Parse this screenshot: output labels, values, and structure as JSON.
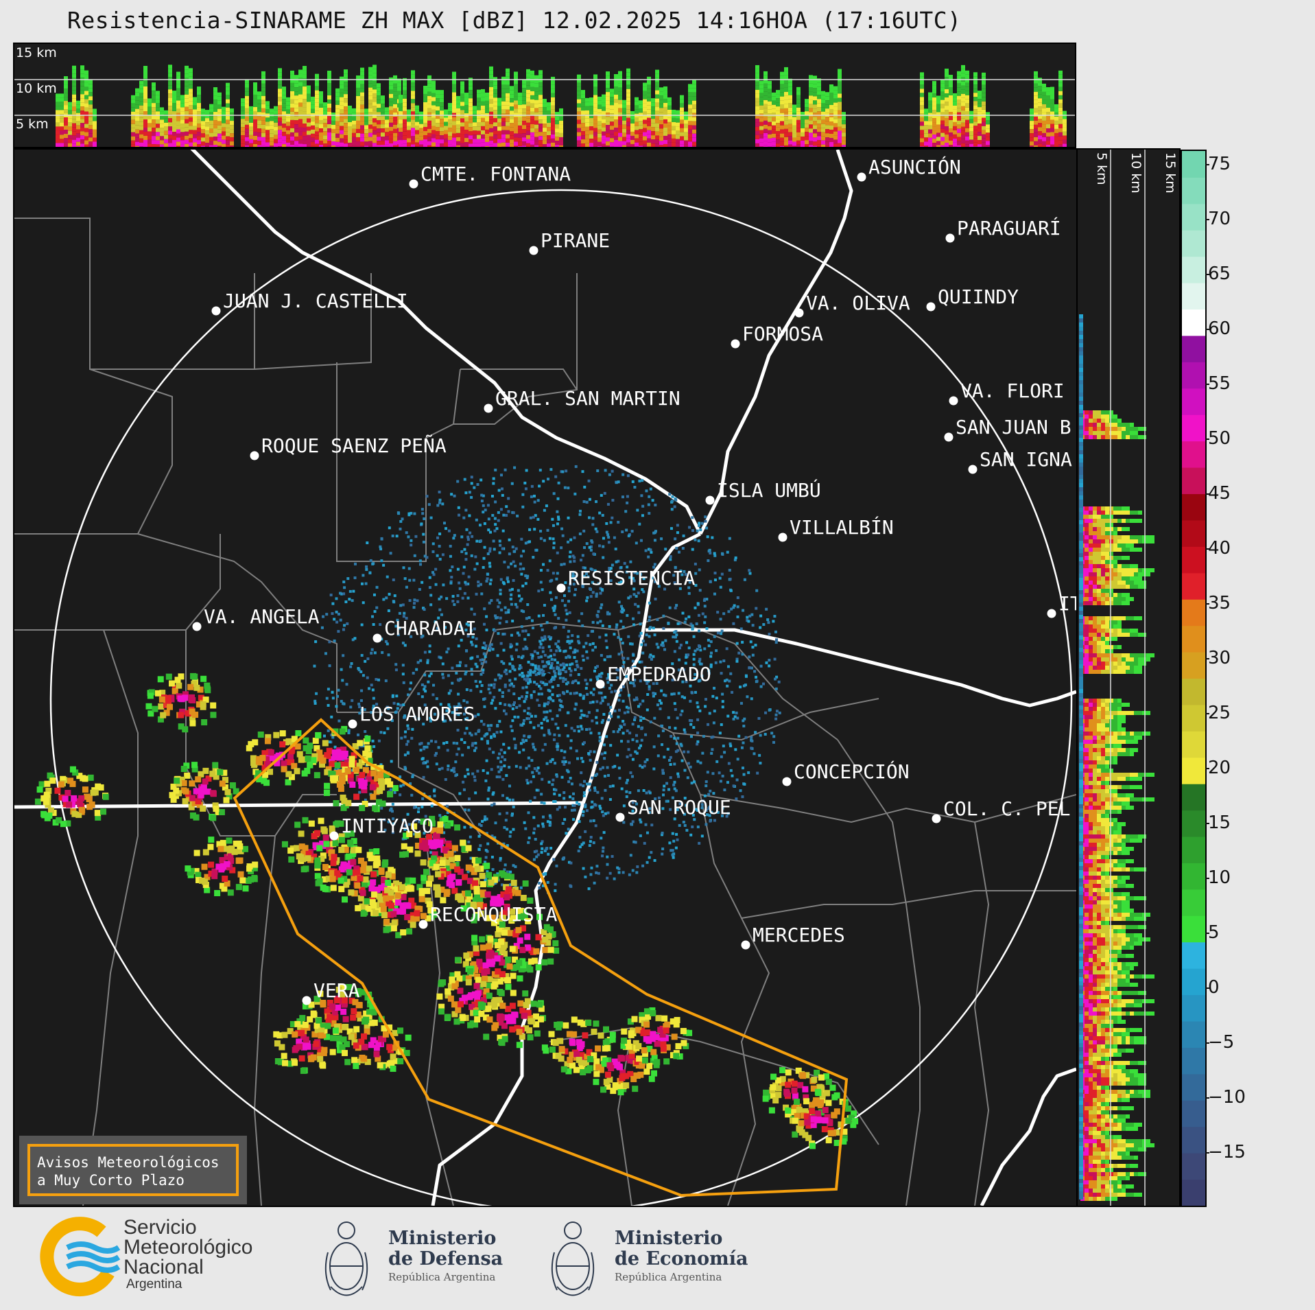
{
  "title": "Resistencia-SINARAME ZH MAX [dBZ] 12.02.2025 14:16HOA (17:16UTC)",
  "top_panel": {
    "altitude_labels": [
      "15 km",
      "10 km",
      "5 km"
    ]
  },
  "side_panel": {
    "altitude_labels": [
      "5 km",
      "10 km",
      "15 km"
    ]
  },
  "colorbar": {
    "unit": "dBZ",
    "ticks": [
      "75",
      "70",
      "65",
      "60",
      "55",
      "50",
      "45",
      "40",
      "35",
      "30",
      "25",
      "20",
      "15",
      "10",
      "5",
      "0",
      "−5",
      "−10",
      "−15"
    ],
    "stops": [
      {
        "color": "#3a3f6e"
      },
      {
        "color": "#3d4877"
      },
      {
        "color": "#3a5282"
      },
      {
        "color": "#375d8e"
      },
      {
        "color": "#336a9a"
      },
      {
        "color": "#2f78a7"
      },
      {
        "color": "#2b86b3"
      },
      {
        "color": "#2795c2"
      },
      {
        "color": "#25a4d0"
      },
      {
        "color": "#2db3df"
      },
      {
        "color": "#3adf3a"
      },
      {
        "color": "#38cc38"
      },
      {
        "color": "#32b632"
      },
      {
        "color": "#2ea02e"
      },
      {
        "color": "#2a8a2a"
      },
      {
        "color": "#257525"
      },
      {
        "color": "#f0e83a"
      },
      {
        "color": "#dfd838"
      },
      {
        "color": "#cfc832"
      },
      {
        "color": "#c2b82e"
      },
      {
        "color": "#d7a020"
      },
      {
        "color": "#e08f1c"
      },
      {
        "color": "#e47a1a"
      },
      {
        "color": "#e0202a"
      },
      {
        "color": "#cc1020"
      },
      {
        "color": "#b20a18"
      },
      {
        "color": "#9a0510"
      },
      {
        "color": "#c8105a"
      },
      {
        "color": "#e0108c"
      },
      {
        "color": "#f012c8"
      },
      {
        "color": "#d010c0"
      },
      {
        "color": "#b010b0"
      },
      {
        "color": "#9010a0"
      },
      {
        "color": "#ffffff"
      },
      {
        "color": "#e2f5ee"
      },
      {
        "color": "#c8efe0"
      },
      {
        "color": "#afe8d2"
      },
      {
        "color": "#98e2c6"
      },
      {
        "color": "#84dcbb"
      },
      {
        "color": "#72d6b0"
      }
    ]
  },
  "cities": [
    {
      "name": "CMTE. FONTANA"
    },
    {
      "name": "ASUNCIÓN"
    },
    {
      "name": "PARAGUARÍ"
    },
    {
      "name": "PIRANE"
    },
    {
      "name": "JUAN J. CASTELLI"
    },
    {
      "name": "VA. OLIVA"
    },
    {
      "name": "QUIINDY"
    },
    {
      "name": "FORMOSA"
    },
    {
      "name": "VA. FLORI"
    },
    {
      "name": "GRAL. SAN MARTIN"
    },
    {
      "name": "SAN JUAN B"
    },
    {
      "name": "ROQUE SAENZ PEÑA"
    },
    {
      "name": "SAN IGNA"
    },
    {
      "name": "ISLA UMBÚ"
    },
    {
      "name": "VILLALBÍN"
    },
    {
      "name": "RESISTENCIA"
    },
    {
      "name": "VA. ANGELA"
    },
    {
      "name": "CHARADAI"
    },
    {
      "name": "IT"
    },
    {
      "name": "EMPEDRADO"
    },
    {
      "name": "LOS AMORES"
    },
    {
      "name": "CONCEPCIÓN"
    },
    {
      "name": "SAN ROQUE"
    },
    {
      "name": "COL. C. PEL"
    },
    {
      "name": "INTIYACO"
    },
    {
      "name": "RECONQUISTA"
    },
    {
      "name": "MERCEDES"
    },
    {
      "name": "VERA"
    }
  ],
  "warning_box": {
    "line1": "Avisos Meteorológicos",
    "line2": "a Muy Corto Plazo"
  },
  "logos": {
    "smn": {
      "line1": "Servicio",
      "line2": "Meteorológico",
      "line3": "Nacional",
      "line4": "Argentina"
    },
    "defensa": {
      "line1": "Ministerio",
      "line2": "de Defensa",
      "line3": "República Argentina"
    },
    "economia": {
      "line1": "Ministerio",
      "line2": "de Economía",
      "line3": "República Argentina"
    }
  },
  "colors": {
    "warning_polygon": "#f5a00f",
    "range_ring": "#ffffff",
    "borders": "#888888",
    "rivers": "#ffffff"
  }
}
